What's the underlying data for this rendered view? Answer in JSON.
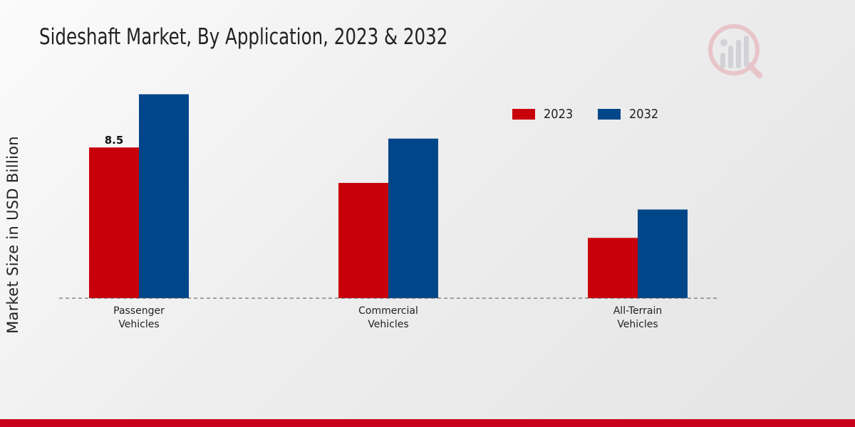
{
  "chart_data": {
    "type": "bar",
    "title": "Sideshaft Market, By Application, 2023 & 2032",
    "xlabel": "",
    "ylabel": "Market Size in USD Billion",
    "categories": [
      [
        "Passenger",
        "Vehicles"
      ],
      [
        "Commercial",
        "Vehicles"
      ],
      [
        "All-Terrain",
        "Vehicles"
      ]
    ],
    "series": [
      {
        "name": "2023",
        "color": "#c8000a",
        "values": [
          8.5,
          6.5,
          3.4
        ]
      },
      {
        "name": "2032",
        "color": "#02468a",
        "values": [
          11.5,
          9.0,
          5.0
        ]
      }
    ],
    "data_labels": [
      {
        "series": 0,
        "index": 0,
        "text": "8.5"
      }
    ],
    "ylim": [
      0,
      12
    ],
    "grid": false,
    "legend_position": "top-right"
  },
  "branding": {
    "logo_icon": "market-research-logo-icon",
    "accent_color": "#c8001b"
  }
}
